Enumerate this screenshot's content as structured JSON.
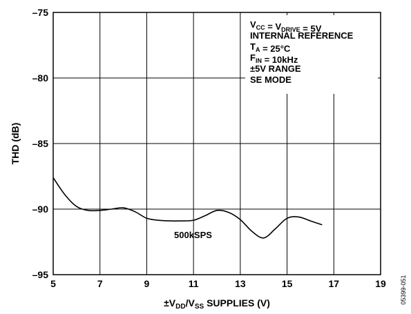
{
  "chart_data": {
    "type": "line",
    "xlabel_parts": [
      "±V",
      "DD",
      "/V",
      "SS",
      " SUPPLIES (V)"
    ],
    "ylabel": "THD (dB)",
    "xlim": [
      5,
      19
    ],
    "ylim": [
      -95,
      -75
    ],
    "xticks": [
      "5",
      "7",
      "9",
      "11",
      "13",
      "15",
      "17",
      "19"
    ],
    "yticks": [
      "–75",
      "–80",
      "–85",
      "–90",
      "–95"
    ],
    "grid": true,
    "series": [
      {
        "name": "500kSPS",
        "x": [
          5.0,
          5.5,
          6.0,
          6.5,
          7.0,
          7.5,
          8.0,
          8.5,
          9.0,
          9.5,
          10.0,
          10.5,
          11.0,
          11.5,
          12.0,
          12.5,
          13.0,
          13.5,
          14.0,
          14.5,
          15.0,
          15.5,
          16.0,
          16.5
        ],
        "y": [
          -87.6,
          -88.9,
          -89.8,
          -90.1,
          -90.1,
          -90.0,
          -89.9,
          -90.2,
          -90.7,
          -90.85,
          -90.9,
          -90.9,
          -90.85,
          -90.5,
          -90.1,
          -90.25,
          -90.8,
          -91.7,
          -92.2,
          -91.5,
          -90.7,
          -90.6,
          -90.9,
          -91.2
        ]
      }
    ],
    "annotation_lines": [
      [
        {
          "t": "V"
        },
        {
          "t": "CC",
          "sub": true
        },
        {
          "t": " = V"
        },
        {
          "t": "DRIVE",
          "sub": true
        },
        {
          "t": " = 5V"
        }
      ],
      [
        {
          "t": "INTERNAL REFERENCE"
        }
      ],
      [
        {
          "t": "T"
        },
        {
          "t": "A",
          "sub": true
        },
        {
          "t": " = 25°C"
        }
      ],
      [
        {
          "t": "F"
        },
        {
          "t": "IN",
          "sub": true
        },
        {
          "t": " = 10kHz"
        }
      ],
      [
        {
          "t": "±5V RANGE"
        }
      ],
      [
        {
          "t": "SE MODE"
        }
      ]
    ],
    "side_code": "05399-051"
  }
}
